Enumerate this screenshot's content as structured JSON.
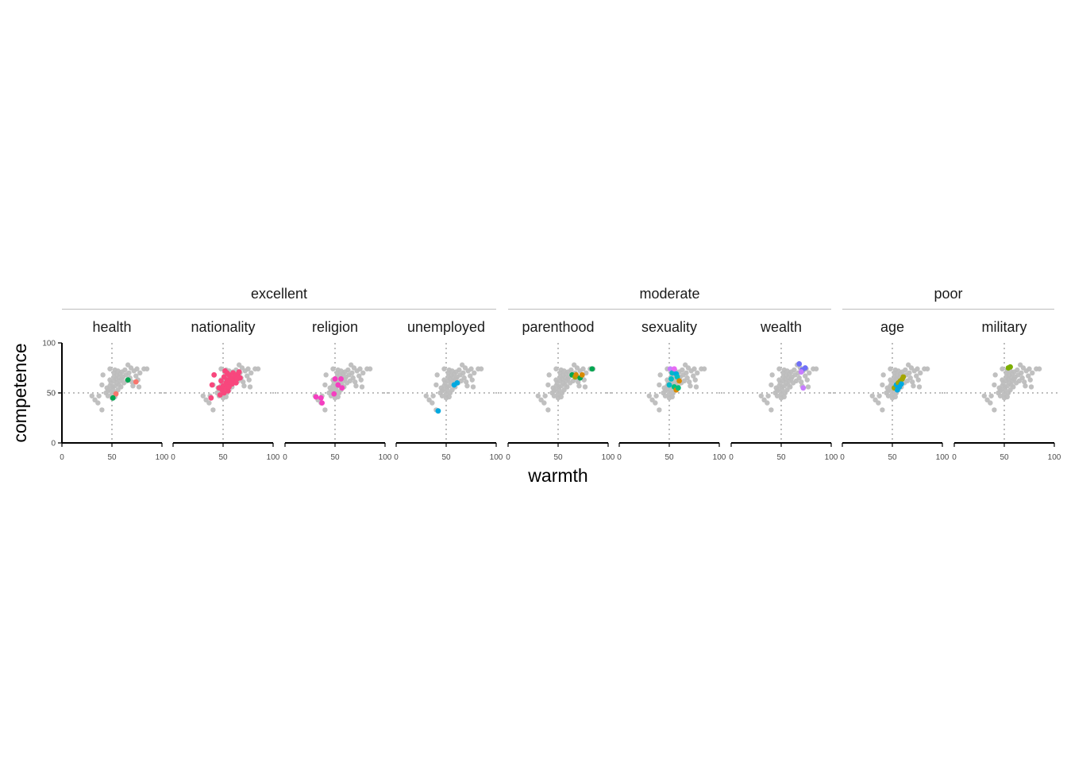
{
  "chart_data": {
    "type": "scatter",
    "xlabel": "warmth",
    "ylabel": "competence",
    "xlim": [
      0,
      100
    ],
    "ylim": [
      0,
      100
    ],
    "xticks": [
      "0",
      "50",
      "100"
    ],
    "yticks": [
      "0",
      "50",
      "100"
    ],
    "reference_lines": {
      "x": 50,
      "y": 50,
      "style": "dotted"
    },
    "grid": false,
    "colors": {
      "background_points": "#bdbdbd",
      "reference": "#bdbdbd",
      "axis": "#000000"
    },
    "groups": [
      {
        "name": "excellent",
        "facets": [
          "health",
          "nationality",
          "religion",
          "unemployed"
        ]
      },
      {
        "name": "moderate",
        "facets": [
          "parenthood",
          "sexuality",
          "wealth"
        ]
      },
      {
        "name": "poor",
        "facets": [
          "age",
          "military"
        ]
      }
    ],
    "background": [
      [
        30,
        47
      ],
      [
        33,
        43
      ],
      [
        36,
        40
      ],
      [
        37,
        47
      ],
      [
        40,
        33
      ],
      [
        40,
        58
      ],
      [
        41,
        68
      ],
      [
        44,
        50
      ],
      [
        45,
        55
      ],
      [
        46,
        52
      ],
      [
        46,
        47
      ],
      [
        48,
        63
      ],
      [
        48,
        57
      ],
      [
        49,
        60
      ],
      [
        50,
        45
      ],
      [
        50,
        49
      ],
      [
        51,
        56
      ],
      [
        51,
        53
      ],
      [
        52,
        62
      ],
      [
        52,
        66
      ],
      [
        52,
        70
      ],
      [
        53,
        73
      ],
      [
        53,
        57
      ],
      [
        54,
        50
      ],
      [
        54,
        64
      ],
      [
        55,
        68
      ],
      [
        55,
        60
      ],
      [
        56,
        72
      ],
      [
        56,
        53
      ],
      [
        57,
        65
      ],
      [
        57,
        58
      ],
      [
        58,
        69
      ],
      [
        58,
        62
      ],
      [
        59,
        56
      ],
      [
        60,
        64
      ],
      [
        60,
        71
      ],
      [
        61,
        66
      ],
      [
        62,
        60
      ],
      [
        63,
        73
      ],
      [
        64,
        68
      ],
      [
        65,
        62
      ],
      [
        66,
        78
      ],
      [
        67,
        70
      ],
      [
        68,
        65
      ],
      [
        69,
        75
      ],
      [
        70,
        61
      ],
      [
        71,
        57
      ],
      [
        72,
        72
      ],
      [
        74,
        67
      ],
      [
        75,
        74
      ],
      [
        76,
        63
      ],
      [
        77,
        56
      ],
      [
        78,
        70
      ],
      [
        82,
        74
      ],
      [
        85,
        74
      ],
      [
        48,
        74
      ],
      [
        53,
        46
      ],
      [
        47,
        53
      ]
    ],
    "facets": [
      {
        "name": "health",
        "points": [
          {
            "x": 66,
            "y": 63,
            "color": "#00a651"
          },
          {
            "x": 74,
            "y": 61,
            "color": "#f8766d"
          },
          {
            "x": 54,
            "y": 49,
            "color": "#f8766d"
          },
          {
            "x": 51,
            "y": 45,
            "color": "#00a651"
          }
        ]
      },
      {
        "name": "nationality",
        "points": [
          {
            "x": 41,
            "y": 68,
            "color": "#f8477d"
          },
          {
            "x": 39,
            "y": 58,
            "color": "#f8477d"
          },
          {
            "x": 38,
            "y": 45,
            "color": "#f8477d"
          },
          {
            "x": 46,
            "y": 55,
            "color": "#f8477d"
          },
          {
            "x": 47,
            "y": 48,
            "color": "#f8477d"
          },
          {
            "x": 48,
            "y": 62,
            "color": "#f8477d"
          },
          {
            "x": 49,
            "y": 53,
            "color": "#f8477d"
          },
          {
            "x": 50,
            "y": 57,
            "color": "#f8477d"
          },
          {
            "x": 51,
            "y": 66,
            "color": "#f8477d"
          },
          {
            "x": 51,
            "y": 50,
            "color": "#f8477d"
          },
          {
            "x": 52,
            "y": 72,
            "color": "#f8477d"
          },
          {
            "x": 53,
            "y": 60,
            "color": "#f8477d"
          },
          {
            "x": 53,
            "y": 55,
            "color": "#f8477d"
          },
          {
            "x": 54,
            "y": 63,
            "color": "#f8477d"
          },
          {
            "x": 55,
            "y": 58,
            "color": "#f8477d"
          },
          {
            "x": 55,
            "y": 52,
            "color": "#f8477d"
          },
          {
            "x": 56,
            "y": 68,
            "color": "#f8477d"
          },
          {
            "x": 57,
            "y": 61,
            "color": "#f8477d"
          },
          {
            "x": 58,
            "y": 65,
            "color": "#f8477d"
          },
          {
            "x": 59,
            "y": 59,
            "color": "#f8477d"
          },
          {
            "x": 60,
            "y": 70,
            "color": "#f8477d"
          },
          {
            "x": 61,
            "y": 63,
            "color": "#f8477d"
          },
          {
            "x": 62,
            "y": 67,
            "color": "#f8477d"
          },
          {
            "x": 63,
            "y": 60,
            "color": "#f8477d"
          },
          {
            "x": 64,
            "y": 64,
            "color": "#f8477d"
          },
          {
            "x": 65,
            "y": 69,
            "color": "#f8477d"
          },
          {
            "x": 66,
            "y": 71,
            "color": "#f8477d"
          },
          {
            "x": 67,
            "y": 65,
            "color": "#f8477d"
          },
          {
            "x": 56,
            "y": 56,
            "color": "#f8477d"
          },
          {
            "x": 54,
            "y": 70,
            "color": "#f8477d"
          }
        ]
      },
      {
        "name": "religion",
        "points": [
          {
            "x": 31,
            "y": 46,
            "color": "#f43fc0"
          },
          {
            "x": 36,
            "y": 45,
            "color": "#f43fc0"
          },
          {
            "x": 37,
            "y": 40,
            "color": "#f43fc0"
          },
          {
            "x": 49,
            "y": 49,
            "color": "#f43fc0"
          },
          {
            "x": 50,
            "y": 64,
            "color": "#f43fc0"
          },
          {
            "x": 53,
            "y": 58,
            "color": "#f43fc0"
          },
          {
            "x": 56,
            "y": 64,
            "color": "#f43fc0"
          },
          {
            "x": 57,
            "y": 55,
            "color": "#f43fc0"
          }
        ]
      },
      {
        "name": "unemployed",
        "points": [
          {
            "x": 42,
            "y": 32,
            "color": "#00a9e0"
          },
          {
            "x": 58,
            "y": 58,
            "color": "#00a9e0"
          },
          {
            "x": 61,
            "y": 60,
            "color": "#00a9e0"
          }
        ]
      },
      {
        "name": "parenthood",
        "points": [
          {
            "x": 64,
            "y": 68,
            "color": "#00a651"
          },
          {
            "x": 67,
            "y": 66,
            "color": "#a3a500"
          },
          {
            "x": 68,
            "y": 68,
            "color": "#d98a00"
          },
          {
            "x": 72,
            "y": 65,
            "color": "#00a651"
          },
          {
            "x": 74,
            "y": 68,
            "color": "#d98a00"
          },
          {
            "x": 84,
            "y": 74,
            "color": "#00a651"
          }
        ]
      },
      {
        "name": "sexuality",
        "points": [
          {
            "x": 51,
            "y": 74,
            "color": "#c77cff"
          },
          {
            "x": 53,
            "y": 70,
            "color": "#00b8c8"
          },
          {
            "x": 55,
            "y": 74,
            "color": "#e76bf3"
          },
          {
            "x": 57,
            "y": 69,
            "color": "#00a9e0"
          },
          {
            "x": 58,
            "y": 66,
            "color": "#00bfc4"
          },
          {
            "x": 52,
            "y": 64,
            "color": "#00bfc4"
          },
          {
            "x": 50,
            "y": 58,
            "color": "#00b8c8"
          },
          {
            "x": 60,
            "y": 62,
            "color": "#d98a00"
          },
          {
            "x": 55,
            "y": 56,
            "color": "#00bf7d"
          },
          {
            "x": 57,
            "y": 53,
            "color": "#d98a00"
          },
          {
            "x": 59,
            "y": 55,
            "color": "#00bf7d"
          }
        ]
      },
      {
        "name": "wealth",
        "points": [
          {
            "x": 68,
            "y": 79,
            "color": "#6f6ff7"
          },
          {
            "x": 71,
            "y": 73,
            "color": "#6f6ff7"
          },
          {
            "x": 74,
            "y": 75,
            "color": "#6f6ff7"
          },
          {
            "x": 70,
            "y": 71,
            "color": "#c77cff"
          },
          {
            "x": 72,
            "y": 55,
            "color": "#c77cff"
          }
        ]
      },
      {
        "name": "age",
        "points": [
          {
            "x": 52,
            "y": 55,
            "color": "#a3a500"
          },
          {
            "x": 54,
            "y": 58,
            "color": "#00a9e0"
          },
          {
            "x": 56,
            "y": 60,
            "color": "#a3a500"
          },
          {
            "x": 57,
            "y": 56,
            "color": "#00a9e0"
          },
          {
            "x": 58,
            "y": 62,
            "color": "#a3a500"
          },
          {
            "x": 59,
            "y": 59,
            "color": "#00a9e0"
          },
          {
            "x": 60,
            "y": 64,
            "color": "#a3a500"
          },
          {
            "x": 61,
            "y": 66,
            "color": "#a3a500"
          },
          {
            "x": 55,
            "y": 53,
            "color": "#00a9e0"
          }
        ]
      },
      {
        "name": "military",
        "points": [
          {
            "x": 54,
            "y": 75,
            "color": "#7cae00"
          },
          {
            "x": 56,
            "y": 76,
            "color": "#7cae00"
          }
        ]
      }
    ]
  }
}
